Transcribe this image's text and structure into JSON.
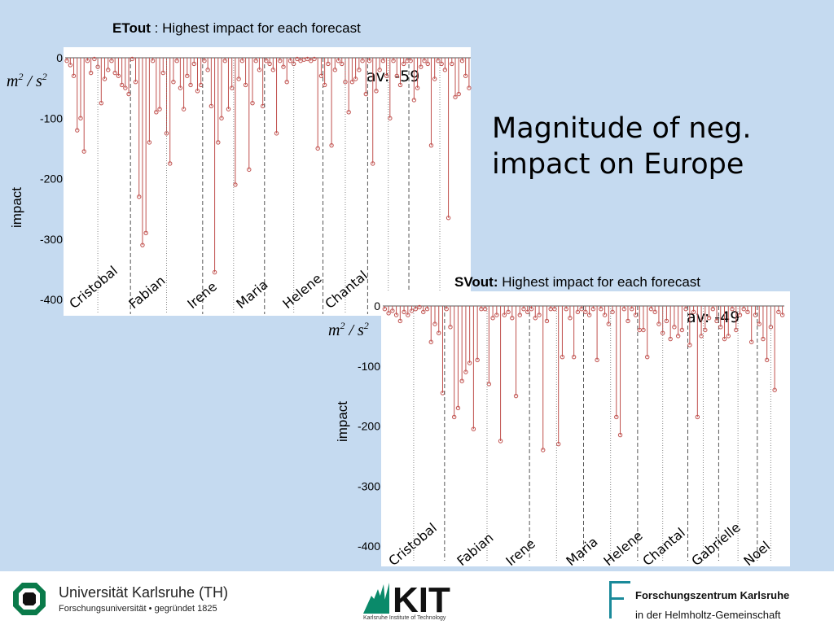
{
  "slide": {
    "title_line1": "Magnitude of neg.",
    "title_line2": "impact on Europe"
  },
  "chart_data": [
    {
      "type": "stem",
      "title_bold": "ETout",
      "title_rest": " : Highest impact for each forecast",
      "ylabel": "impact",
      "unit_label": "m2/s2",
      "annotation": "av: -59",
      "ylim": [
        -400,
        0
      ],
      "yticks": [
        0,
        -100,
        -200,
        -300,
        -400
      ],
      "stem_color": "#c0504d",
      "sections": [
        {
          "name": "Cristobal",
          "values": [
            -5,
            -12,
            -30,
            -120,
            -100,
            -155,
            -5,
            -25,
            -2,
            -15,
            -75,
            -35,
            -20,
            -5,
            -25,
            -30,
            -45,
            -50,
            -60
          ]
        },
        {
          "name": "Fabian",
          "values": [
            -2,
            -40,
            -230,
            -310,
            -290,
            -140,
            -5,
            -90,
            -85,
            -25,
            -125,
            -175,
            -40,
            -5,
            -50,
            -85,
            -30,
            -45,
            -10,
            -55,
            -45
          ]
        },
        {
          "name": "Irene",
          "values": [
            -5,
            -20,
            -80,
            -355,
            -140,
            -100,
            -5,
            -85,
            -50,
            -210,
            -35,
            -5,
            -45,
            -185,
            -75,
            -5,
            -20,
            -80
          ]
        },
        {
          "name": "Maria",
          "values": [
            -5,
            -10,
            -20,
            -125,
            -5,
            -15,
            -40,
            -5,
            -10,
            -2,
            -5,
            -3,
            -2,
            -5,
            -2,
            -150,
            -30
          ]
        },
        {
          "name": "Helene",
          "values": [
            -45,
            -10,
            -145,
            -20,
            -5,
            -10,
            -40,
            -90,
            -40,
            -35,
            -20,
            -5,
            -60
          ]
        },
        {
          "name": "Chantal",
          "values": [
            -5,
            -175,
            -55,
            -20,
            -5,
            -30,
            -100,
            -5,
            -30,
            -45,
            -10,
            -5
          ]
        },
        {
          "name": "",
          "values": [
            -5,
            -70,
            -50,
            -15,
            -5,
            -10,
            -145,
            -35,
            -5,
            -10,
            -20,
            -265,
            -10,
            -65,
            -60,
            -5,
            -30,
            -50
          ]
        }
      ]
    },
    {
      "type": "stem",
      "title_bold": "SVout:",
      "title_rest": " Highest impact for each forecast",
      "ylabel": "impact",
      "unit_label": "m2/s2",
      "annotation": "av: -49",
      "ylim": [
        -400,
        0
      ],
      "yticks": [
        0,
        -100,
        -200,
        -300,
        -400
      ],
      "stem_color": "#c0504d",
      "sections": [
        {
          "name": "Cristobal",
          "values": [
            -5,
            -12,
            -8,
            -15,
            -25,
            -10,
            -15,
            -8,
            -5,
            -2,
            -10,
            -5,
            -60,
            -30,
            -45,
            -145
          ]
        },
        {
          "name": "Fabian",
          "values": [
            -5,
            -35,
            -185,
            -170,
            -125,
            -110,
            -95,
            -205,
            -90,
            -5,
            -5,
            -130,
            -20,
            -15,
            -225,
            -15,
            -10,
            -20,
            -150,
            -15,
            -5,
            -10
          ]
        },
        {
          "name": "Irene",
          "values": [
            -5,
            -20,
            -15,
            -240,
            -25,
            -5,
            -5,
            -230,
            -85,
            -5,
            -20,
            -85,
            -10,
            -5
          ]
        },
        {
          "name": "Maria",
          "values": [
            -10,
            -15,
            -5,
            -90,
            -5,
            -15,
            -30,
            -10,
            -185,
            -215,
            -5,
            -25,
            -5,
            -15
          ]
        },
        {
          "name": "Helene",
          "values": [
            -40,
            -40,
            -85,
            -5,
            -10,
            -30,
            -45,
            -25,
            -55,
            -35,
            -50,
            -40,
            -5
          ]
        },
        {
          "name": "Chantal",
          "values": [
            -65,
            -10,
            -185,
            -50,
            -40,
            -20,
            -5,
            -25
          ]
        },
        {
          "name": "Gabrielle",
          "values": [
            -35,
            -55,
            -50,
            -5,
            -40,
            -15,
            -5,
            -10,
            -60,
            -15
          ]
        },
        {
          "name": "Noel",
          "values": [
            -30,
            -55,
            -90,
            -35,
            -140,
            -10,
            -15
          ]
        }
      ]
    }
  ],
  "footer": {
    "uni_name": "Universität Karlsruhe (TH)",
    "uni_sub": "Forschungsuniversität • gegründet 1825",
    "kit_logo": "KIT",
    "kit_sub": "Karlsruhe Institute of Technology",
    "fzk_name": "Forschungszentrum Karlsruhe",
    "fzk_sub": "in der Helmholtz-Gemeinschaft"
  }
}
